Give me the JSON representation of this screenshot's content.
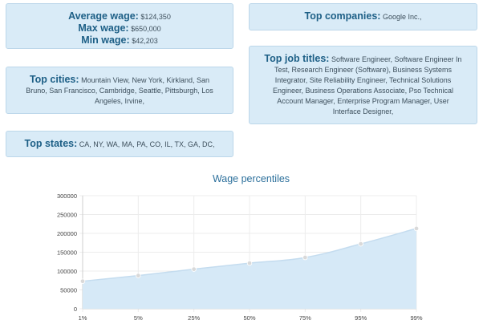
{
  "wages": {
    "average_label": "Average wage:",
    "average_value": "$124,350",
    "max_label": "Max wage:",
    "max_value": "$650,000",
    "min_label": "Min wage:",
    "min_value": "$42,203"
  },
  "companies": {
    "label": "Top companies:",
    "value": "Google Inc.,"
  },
  "job_titles": {
    "label": "Top job titles:",
    "value": "Software Engineer, Software Engineer In Test, Research Engineer (Software), Business Systems Integrator, Site Reliability Engineer, Technical Solutions Engineer, Business Operations Associate, Pso Technical Account Manager, Enterprise Program Manager, User Interface Designer,"
  },
  "cities": {
    "label": "Top cities:",
    "value": "Mountain View, New York, Kirkland, San Bruno, San Francisco, Cambridge, Seattle, Pittsburgh, Los Angeles, Irvine,"
  },
  "states": {
    "label": "Top states:",
    "value": "CA, NY, WA, MA, PA, CO, IL, TX, GA, DC,"
  },
  "chart_data": {
    "type": "area",
    "title": "Wage percentiles",
    "categories": [
      "1%",
      "5%",
      "25%",
      "50%",
      "75%",
      "95%",
      "99%"
    ],
    "values": [
      73000,
      88000,
      105000,
      121000,
      136000,
      172000,
      213000
    ],
    "ylim": [
      0,
      300000
    ],
    "yticks": [
      "0",
      "50000",
      "100000",
      "150000",
      "200000",
      "250000",
      "300000"
    ],
    "grid": true,
    "fill_color": "#d6e9f7",
    "line_color": "#c4dcef",
    "point_color": "#d9d9d9"
  }
}
